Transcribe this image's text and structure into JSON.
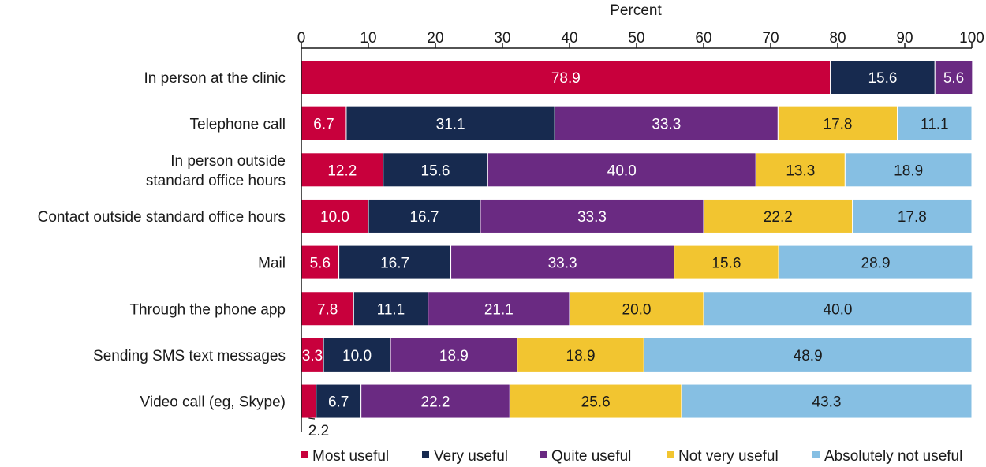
{
  "chart_data": {
    "type": "bar",
    "orientation": "horizontal",
    "stacked": true,
    "xlabel": "Percent",
    "xlim": [
      0,
      100
    ],
    "x_ticks": [
      "0",
      "10",
      "20",
      "30",
      "40",
      "50",
      "60",
      "70",
      "80",
      "90",
      "100"
    ],
    "grid": false,
    "legend_position": "bottom",
    "categories": [
      "In person at the clinic",
      "Telephone call",
      "In person outside standard office hours",
      "Contact outside standard office hours",
      "Mail",
      "Through the phone app",
      "Sending SMS text messages",
      "Video call (eg, Skype)"
    ],
    "category_label_lines": [
      [
        "In person at the clinic"
      ],
      [
        "Telephone call"
      ],
      [
        "In person outside",
        "standard office hours"
      ],
      [
        "Contact outside standard office hours"
      ],
      [
        "Mail"
      ],
      [
        "Through the phone app"
      ],
      [
        "Sending SMS text messages"
      ],
      [
        "Video call (eg, Skype)"
      ]
    ],
    "series": [
      {
        "name": "Most useful",
        "color": "#c8003c",
        "values": [
          78.9,
          6.7,
          12.2,
          10.0,
          5.6,
          7.8,
          3.3,
          2.2
        ],
        "labels": [
          "78.9",
          "6.7",
          "12.2",
          "10.0",
          "5.6",
          "7.8",
          "3.3",
          "2.2"
        ]
      },
      {
        "name": "Very useful",
        "color": "#172a4f",
        "values": [
          15.6,
          31.1,
          15.6,
          16.7,
          16.7,
          11.1,
          10.0,
          6.7
        ],
        "labels": [
          "15.6",
          "31.1",
          "15.6",
          "16.7",
          "16.7",
          "11.1",
          "10.0",
          "6.7"
        ]
      },
      {
        "name": "Quite useful",
        "color": "#6a2a82",
        "values": [
          5.6,
          33.3,
          40.0,
          33.3,
          33.3,
          21.1,
          18.9,
          22.2
        ],
        "labels": [
          "5.6",
          "33.3",
          "40.0",
          "33.3",
          "33.3",
          "21.1",
          "18.9",
          "22.2"
        ]
      },
      {
        "name": "Not very useful",
        "color": "#f2c530",
        "values": [
          0,
          17.8,
          13.3,
          22.2,
          15.6,
          20.0,
          18.9,
          25.6
        ],
        "labels": [
          "",
          "17.8",
          "13.3",
          "22.2",
          "15.6",
          "20.0",
          "18.9",
          "25.6"
        ]
      },
      {
        "name": "Absolutely not useful",
        "color": "#86bfe3",
        "values": [
          0,
          11.1,
          18.9,
          17.8,
          28.9,
          40.0,
          48.9,
          43.3
        ],
        "labels": [
          "",
          "11.1",
          "18.9",
          "17.8",
          "28.9",
          "40.0",
          "48.9",
          "43.3"
        ]
      }
    ],
    "text_colors": {
      "on_dark": "#ffffff",
      "on_light": "#1a1a1a"
    },
    "callout": {
      "category_index": 7,
      "series_index": 0,
      "label": "2.2"
    }
  }
}
